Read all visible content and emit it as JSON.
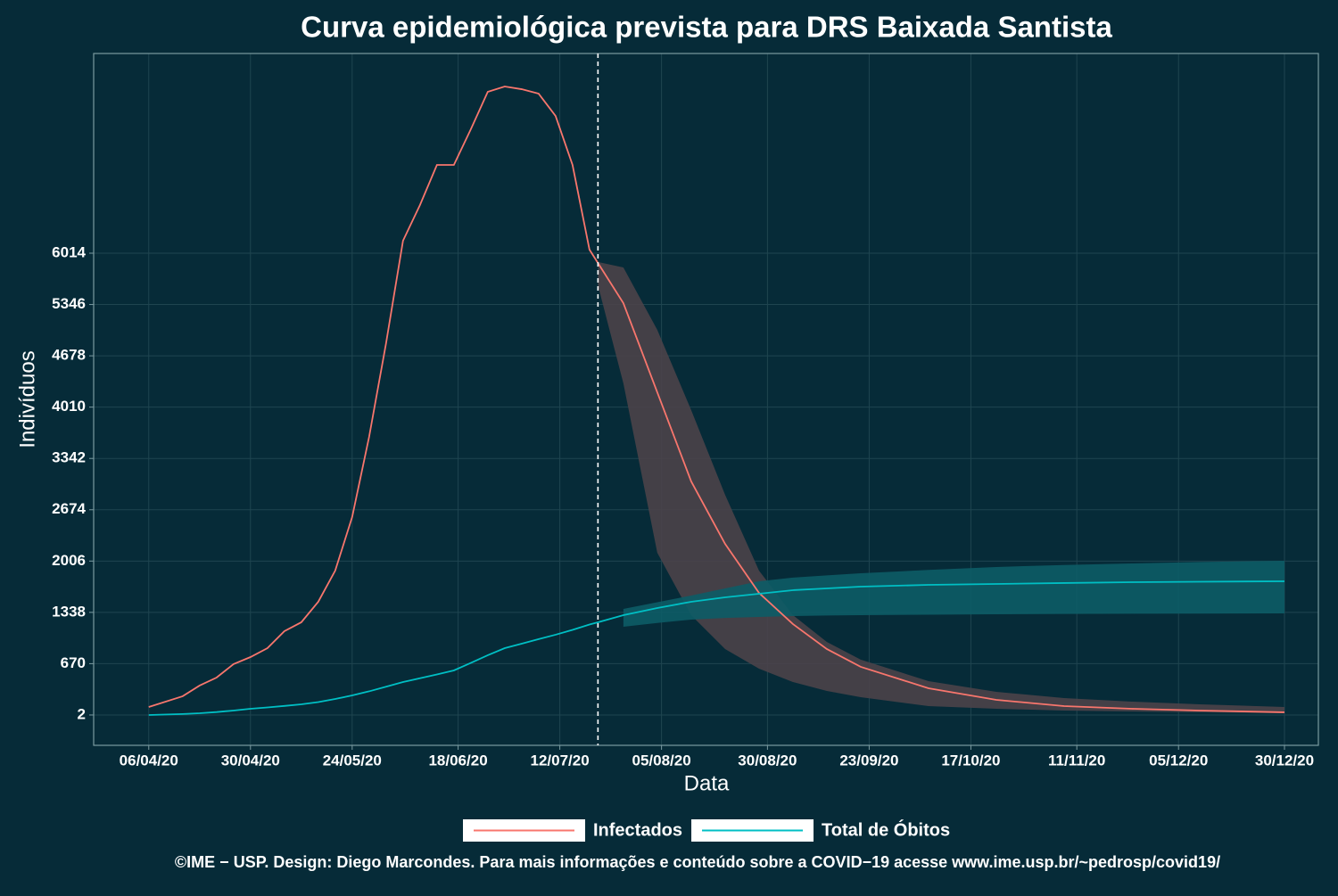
{
  "chart_data": {
    "type": "line",
    "title": "Curva epidemiológica prevista para DRS Baixada Santista",
    "x_label": "Data",
    "y_label": "Indivíduos",
    "caption": "©IME − USP. Design: Diego Marcondes. Para mais informações e conteúdo sobre a COVID−19 acesse www.ime.usp.br/~pedrosp/covid19/",
    "x": [
      "2020-04-06",
      "2020-04-14",
      "2020-04-18",
      "2020-04-22",
      "2020-04-26",
      "2020-04-30",
      "2020-05-04",
      "2020-05-08",
      "2020-05-12",
      "2020-05-16",
      "2020-05-20",
      "2020-05-24",
      "2020-05-28",
      "2020-06-01",
      "2020-06-05",
      "2020-06-09",
      "2020-06-13",
      "2020-06-17",
      "2020-06-21",
      "2020-06-25",
      "2020-06-29",
      "2020-07-03",
      "2020-07-07",
      "2020-07-11",
      "2020-07-15",
      "2020-07-19",
      "2020-07-21",
      "2020-07-27",
      "2020-08-04",
      "2020-08-12",
      "2020-08-20",
      "2020-08-28",
      "2020-09-05",
      "2020-09-13",
      "2020-09-21",
      "2020-10-07",
      "2020-10-23",
      "2020-11-08",
      "2020-11-24",
      "2020-12-10",
      "2020-12-30"
    ],
    "series": [
      {
        "name": "Infectados",
        "color": "#f8766d",
        "band_color": "#4b4349",
        "values": [
          106,
          246,
          385,
          489,
          664,
          756,
          872,
          1093,
          1209,
          1476,
          1882,
          2579,
          3623,
          4842,
          6177,
          6641,
          7163,
          7163,
          7627,
          8115,
          8184,
          8149,
          8091,
          7801,
          7163,
          6060,
          5886,
          5364,
          4203,
          3043,
          2230,
          1592,
          1186,
          861,
          629,
          350,
          199,
          118,
          83,
          60,
          37
        ],
        "upper": [
          null,
          null,
          null,
          null,
          null,
          null,
          null,
          null,
          null,
          null,
          null,
          null,
          null,
          null,
          null,
          null,
          null,
          null,
          null,
          null,
          null,
          null,
          null,
          null,
          null,
          null,
          5900,
          5828,
          5016,
          3971,
          2869,
          1882,
          1302,
          954,
          722,
          443,
          304,
          222,
          176,
          141,
          106
        ],
        "lower": [
          null,
          null,
          null,
          null,
          null,
          null,
          null,
          null,
          null,
          null,
          null,
          null,
          null,
          null,
          null,
          null,
          null,
          null,
          null,
          null,
          null,
          null,
          null,
          null,
          null,
          null,
          5596,
          4319,
          2114,
          1302,
          861,
          605,
          431,
          315,
          234,
          118,
          83,
          60,
          48,
          37,
          25
        ]
      },
      {
        "name": "Total de Óbitos",
        "color": "#00bfc4",
        "band_color": "#0d5c66",
        "values": [
          2,
          15,
          25,
          40,
          60,
          83,
          100,
          120,
          141,
          170,
          210,
          257,
          310,
          370,
          431,
          480,
          530,
          582,
          680,
          780,
          872,
          930,
          990,
          1047,
          1110,
          1180,
          1209,
          1302,
          1395,
          1476,
          1534,
          1580,
          1627,
          1650,
          1673,
          1696,
          1708,
          1720,
          1731,
          1737,
          1743
        ],
        "upper": [
          null,
          null,
          null,
          null,
          null,
          null,
          null,
          null,
          null,
          null,
          null,
          null,
          null,
          null,
          null,
          null,
          null,
          null,
          null,
          null,
          null,
          null,
          null,
          null,
          null,
          null,
          null,
          1383,
          1470,
          1557,
          1650,
          1743,
          1790,
          1820,
          1847,
          1890,
          1929,
          1955,
          1975,
          1993,
          2010
        ],
        "lower": [
          null,
          null,
          null,
          null,
          null,
          null,
          null,
          null,
          null,
          null,
          null,
          null,
          null,
          null,
          null,
          null,
          null,
          null,
          null,
          null,
          null,
          null,
          null,
          null,
          null,
          null,
          null,
          1151,
          1200,
          1244,
          1265,
          1279,
          1290,
          1297,
          1302,
          1308,
          1313,
          1317,
          1320,
          1322,
          1325
        ]
      }
    ],
    "forecast_start": "2020-07-21",
    "xlim": [
      "2020-03-24",
      "2021-01-07"
    ],
    "xticks": [
      {
        "value": "2020-04-06",
        "label": "06/04/20"
      },
      {
        "value": "2020-04-30",
        "label": "30/04/20"
      },
      {
        "value": "2020-05-24",
        "label": "24/05/20"
      },
      {
        "value": "2020-06-18",
        "label": "18/06/20"
      },
      {
        "value": "2020-07-12",
        "label": "12/07/20"
      },
      {
        "value": "2020-08-05",
        "label": "05/08/20"
      },
      {
        "value": "2020-08-30",
        "label": "30/08/20"
      },
      {
        "value": "2020-09-23",
        "label": "23/09/20"
      },
      {
        "value": "2020-10-17",
        "label": "17/10/20"
      },
      {
        "value": "2020-11-11",
        "label": "11/11/20"
      },
      {
        "value": "2020-12-05",
        "label": "05/12/20"
      },
      {
        "value": "2020-12-30",
        "label": "30/12/20"
      }
    ],
    "ylim": [
      -393,
      8614
    ],
    "yticks": [
      2,
      670,
      1338,
      2006,
      2674,
      3342,
      4010,
      4678,
      5346,
      6014
    ],
    "grid": true
  }
}
